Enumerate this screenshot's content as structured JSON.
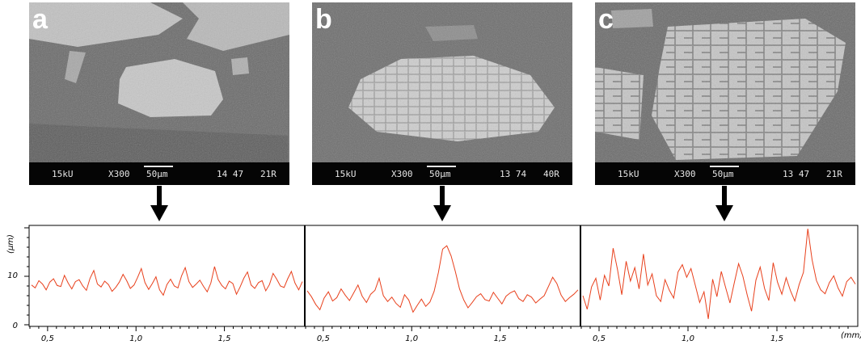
{
  "panels": [
    {
      "letter": "a",
      "kv": "15kU",
      "mag": "X300",
      "scale": "50µm",
      "code1": "14 47",
      "code2": "21R"
    },
    {
      "letter": "b",
      "kv": "15kU",
      "mag": "X300",
      "scale": "50µm",
      "code1": "13 74",
      "code2": "40R"
    },
    {
      "letter": "c",
      "kv": "15kU",
      "mag": "X300",
      "scale": "50µm",
      "code1": "13 47",
      "code2": "21R"
    }
  ],
  "chart_data": {
    "type": "line",
    "ylabel": "(µm)",
    "xunit": "(mm)",
    "yticks": [
      "0",
      "10"
    ],
    "ylim": [
      0,
      20
    ],
    "segments": [
      {
        "xticks": [
          "0,5",
          "1,0",
          "1,5"
        ],
        "xlim": [
          0.4,
          1.95
        ]
      },
      {
        "xticks": [
          "0,5",
          "1,0",
          "1,5"
        ],
        "xlim": [
          0.4,
          1.95
        ]
      },
      {
        "xticks": [
          "0,5",
          "1,0",
          "1,5"
        ],
        "xlim": [
          0.4,
          1.95
        ]
      }
    ],
    "series": [
      {
        "color": "#e8401c",
        "values": [
          8.2,
          7.6,
          9.1,
          8.4,
          7.2,
          8.8,
          9.5,
          8.1,
          7.9,
          10.2,
          8.6,
          7.4,
          8.9,
          9.3,
          8.0,
          7.1,
          9.6,
          11.2,
          8.4,
          7.8,
          9.0,
          8.3,
          6.9,
          7.7,
          8.8,
          10.4,
          9.1,
          7.5,
          8.2,
          9.8,
          11.6,
          8.7,
          7.3,
          8.5,
          9.9,
          7.2,
          6.1,
          8.3,
          9.4,
          8.0,
          7.6,
          10.1,
          11.8,
          8.9,
          7.7,
          8.4,
          9.2,
          7.9,
          6.8,
          8.6,
          12.0,
          9.3,
          8.1,
          7.4,
          9.0,
          8.5,
          6.3,
          7.8,
          9.6,
          10.9,
          8.2,
          7.5,
          8.7,
          9.1,
          7.0,
          8.3,
          10.6,
          9.4,
          8.0,
          7.7,
          9.5,
          11.0,
          8.6,
          7.2,
          8.9
        ]
      },
      {
        "color": "#e8401c",
        "values": [
          7.0,
          5.8,
          4.2,
          3.1,
          5.5,
          6.8,
          4.9,
          5.6,
          7.4,
          6.1,
          5.0,
          6.6,
          8.2,
          5.9,
          4.6,
          6.3,
          7.1,
          9.6,
          6.0,
          4.8,
          5.7,
          4.4,
          3.6,
          6.2,
          5.1,
          2.6,
          4.0,
          5.3,
          3.8,
          4.7,
          6.9,
          10.8,
          15.6,
          16.3,
          14.2,
          11.0,
          7.4,
          5.1,
          3.5,
          4.6,
          5.8,
          6.4,
          5.2,
          4.9,
          6.7,
          5.5,
          4.3,
          5.9,
          6.6,
          7.0,
          5.4,
          4.8,
          6.2,
          5.7,
          4.5,
          5.3,
          6.0,
          7.9,
          9.8,
          8.5,
          6.1,
          4.8,
          5.6,
          6.3,
          7.2
        ]
      },
      {
        "color": "#e8401c",
        "values": [
          6.0,
          3.2,
          7.8,
          9.6,
          5.1,
          10.2,
          8.0,
          15.8,
          11.4,
          6.2,
          13.1,
          9.0,
          11.8,
          7.4,
          14.6,
          8.2,
          10.5,
          6.0,
          4.8,
          9.3,
          7.1,
          5.5,
          10.9,
          12.4,
          9.8,
          11.6,
          8.1,
          4.6,
          6.8,
          1.2,
          9.4,
          5.8,
          11.0,
          7.7,
          4.5,
          8.6,
          12.6,
          10.0,
          6.1,
          2.8,
          9.2,
          11.9,
          7.5,
          5.0,
          12.8,
          8.8,
          6.3,
          9.7,
          7.0,
          4.9,
          8.3,
          10.8,
          19.8,
          13.4,
          9.1,
          7.2,
          6.4,
          8.7,
          10.1,
          7.6,
          5.9,
          8.9,
          9.8,
          8.4
        ]
      }
    ]
  }
}
